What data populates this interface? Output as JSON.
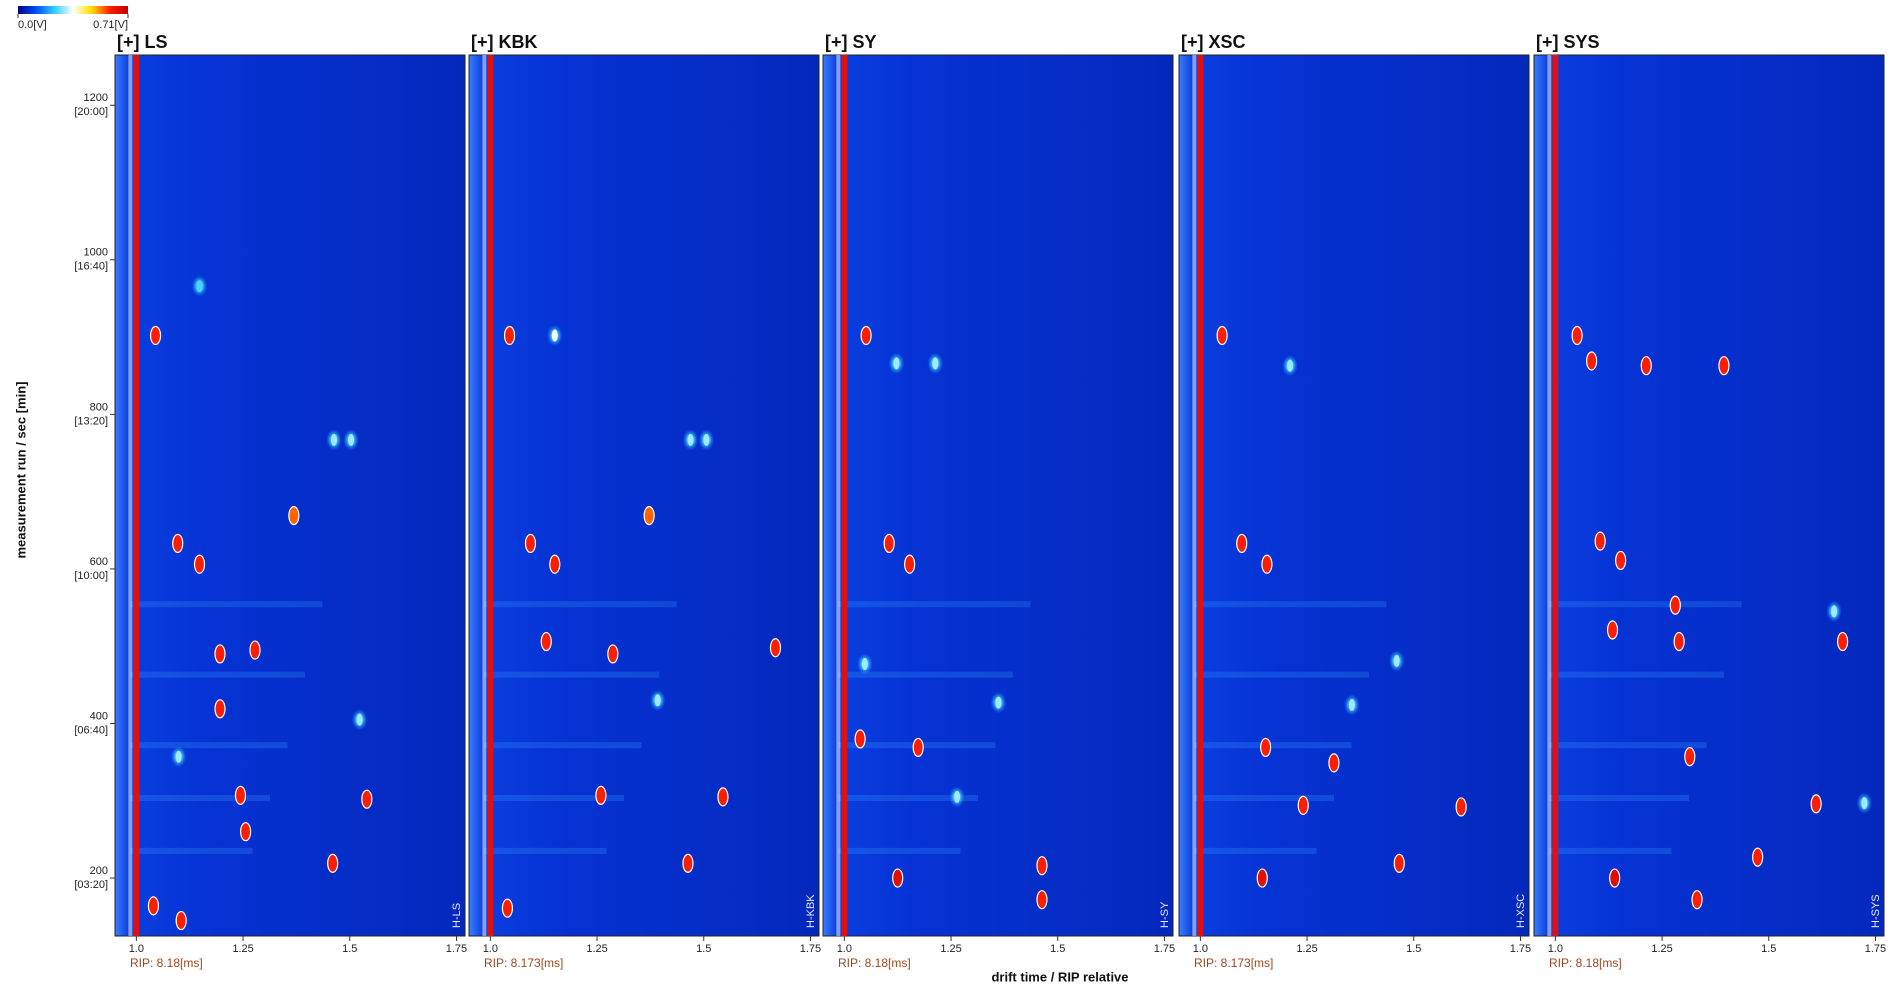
{
  "chart_data": {
    "type": "heatmap",
    "xlabel": "drift time / RIP relative",
    "ylabel": "measurement run / sec [min]",
    "xlim": [
      0.95,
      1.77
    ],
    "xticks": [
      {
        "value": 1.0,
        "label": "1.0"
      },
      1.25,
      1.5,
      1.75
    ],
    "ylim": [
      125,
      1265
    ],
    "yticks": [
      {
        "value": 200,
        "label": "200",
        "time": "[03:20]"
      },
      {
        "value": 400,
        "label": "400",
        "time": "[06:40]"
      },
      {
        "value": 600,
        "label": "600",
        "time": "[10:00]"
      },
      {
        "value": 800,
        "label": "800",
        "time": "[13:20]"
      },
      {
        "value": 1000,
        "label": "1000",
        "time": "[16:40]"
      },
      {
        "value": 1200,
        "label": "1200",
        "time": "[20:00]"
      }
    ],
    "colorbar": {
      "colors": [
        "#00008b",
        "#0050ff",
        "#30d0ff",
        "#ffffff",
        "#ffe000",
        "#ff2000",
        "#c00000"
      ],
      "ticks": [
        {
          "value": 0,
          "label": "0.0[V]"
        },
        {
          "value": 0.71,
          "label": "0.71[V]"
        }
      ]
    },
    "panels": [
      {
        "title": "[+] LS",
        "side_label": "H-LS",
        "rip_label": "RIP: 8.18[ms]",
        "spots": [
          {
            "x": 1.045,
            "y": 902,
            "intensity": 0.6
          },
          {
            "x": 1.097,
            "y": 633,
            "intensity": 0.6
          },
          {
            "x": 1.148,
            "y": 606,
            "intensity": 0.6
          },
          {
            "x": 1.196,
            "y": 490,
            "intensity": 0.6
          },
          {
            "x": 1.196,
            "y": 419,
            "intensity": 0.6
          },
          {
            "x": 1.278,
            "y": 495,
            "intensity": 0.6
          },
          {
            "x": 1.369,
            "y": 669,
            "intensity": 0.55
          },
          {
            "x": 1.463,
            "y": 767,
            "intensity": 0.3
          },
          {
            "x": 1.503,
            "y": 767,
            "intensity": 0.3
          },
          {
            "x": 1.523,
            "y": 405,
            "intensity": 0.3
          },
          {
            "x": 1.244,
            "y": 307,
            "intensity": 0.6
          },
          {
            "x": 1.54,
            "y": 302,
            "intensity": 0.6
          },
          {
            "x": 1.46,
            "y": 219,
            "intensity": 0.6
          },
          {
            "x": 1.256,
            "y": 260,
            "intensity": 0.6
          },
          {
            "x": 1.148,
            "y": 966,
            "intensity": 0.25
          },
          {
            "x": 1.099,
            "y": 357,
            "intensity": 0.3
          },
          {
            "x": 1.04,
            "y": 164,
            "intensity": 0.6
          },
          {
            "x": 1.105,
            "y": 145,
            "intensity": 0.6
          }
        ]
      },
      {
        "title": "[+] KBK",
        "side_label": "H-KBK",
        "rip_label": "RIP: 8.173[ms]",
        "spots": [
          {
            "x": 1.045,
            "y": 902,
            "intensity": 0.6
          },
          {
            "x": 1.151,
            "y": 902,
            "intensity": 0.35
          },
          {
            "x": 1.094,
            "y": 633,
            "intensity": 0.6
          },
          {
            "x": 1.151,
            "y": 606,
            "intensity": 0.6
          },
          {
            "x": 1.131,
            "y": 506,
            "intensity": 0.6
          },
          {
            "x": 1.287,
            "y": 490,
            "intensity": 0.6
          },
          {
            "x": 1.372,
            "y": 669,
            "intensity": 0.55
          },
          {
            "x": 1.469,
            "y": 767,
            "intensity": 0.3
          },
          {
            "x": 1.506,
            "y": 767,
            "intensity": 0.3
          },
          {
            "x": 1.668,
            "y": 498,
            "intensity": 0.6
          },
          {
            "x": 1.259,
            "y": 307,
            "intensity": 0.6
          },
          {
            "x": 1.545,
            "y": 305,
            "intensity": 0.6
          },
          {
            "x": 1.463,
            "y": 219,
            "intensity": 0.6
          },
          {
            "x": 1.392,
            "y": 430,
            "intensity": 0.3
          },
          {
            "x": 1.04,
            "y": 161,
            "intensity": 0.6
          }
        ]
      },
      {
        "title": "[+] SY",
        "side_label": "H-SY",
        "rip_label": "RIP: 8.18[ms]",
        "spots": [
          {
            "x": 1.051,
            "y": 902,
            "intensity": 0.6
          },
          {
            "x": 1.105,
            "y": 633,
            "intensity": 0.6
          },
          {
            "x": 1.153,
            "y": 606,
            "intensity": 0.6
          },
          {
            "x": 1.122,
            "y": 866,
            "intensity": 0.3
          },
          {
            "x": 1.213,
            "y": 866,
            "intensity": 0.3
          },
          {
            "x": 1.173,
            "y": 369,
            "intensity": 0.6
          },
          {
            "x": 1.125,
            "y": 200,
            "intensity": 0.65
          },
          {
            "x": 1.463,
            "y": 216,
            "intensity": 0.6
          },
          {
            "x": 1.463,
            "y": 172,
            "intensity": 0.6
          },
          {
            "x": 1.361,
            "y": 427,
            "intensity": 0.3
          },
          {
            "x": 1.264,
            "y": 305,
            "intensity": 0.3
          },
          {
            "x": 1.037,
            "y": 380,
            "intensity": 0.6
          },
          {
            "x": 1.048,
            "y": 477,
            "intensity": 0.3
          }
        ]
      },
      {
        "title": "[+] XSC",
        "side_label": "H-XSC",
        "rip_label": "RIP: 8.173[ms]",
        "spots": [
          {
            "x": 1.051,
            "y": 902,
            "intensity": 0.6
          },
          {
            "x": 1.097,
            "y": 633,
            "intensity": 0.6
          },
          {
            "x": 1.156,
            "y": 606,
            "intensity": 0.6
          },
          {
            "x": 1.21,
            "y": 863,
            "intensity": 0.3
          },
          {
            "x": 1.153,
            "y": 369,
            "intensity": 0.6
          },
          {
            "x": 1.313,
            "y": 349,
            "intensity": 0.6
          },
          {
            "x": 1.145,
            "y": 200,
            "intensity": 0.65
          },
          {
            "x": 1.466,
            "y": 219,
            "intensity": 0.6
          },
          {
            "x": 1.611,
            "y": 292,
            "intensity": 0.6
          },
          {
            "x": 1.46,
            "y": 481,
            "intensity": 0.3
          },
          {
            "x": 1.355,
            "y": 424,
            "intensity": 0.3
          },
          {
            "x": 1.241,
            "y": 294,
            "intensity": 0.6
          }
        ]
      },
      {
        "title": "[+] SYS",
        "side_label": "H-SYS",
        "rip_label": "RIP: 8.18[ms]",
        "spots": [
          {
            "x": 1.051,
            "y": 902,
            "intensity": 0.6
          },
          {
            "x": 1.085,
            "y": 869,
            "intensity": 0.6
          },
          {
            "x": 1.213,
            "y": 863,
            "intensity": 0.6
          },
          {
            "x": 1.395,
            "y": 863,
            "intensity": 0.6
          },
          {
            "x": 1.105,
            "y": 636,
            "intensity": 0.6
          },
          {
            "x": 1.153,
            "y": 611,
            "intensity": 0.6
          },
          {
            "x": 1.134,
            "y": 521,
            "intensity": 0.6
          },
          {
            "x": 1.281,
            "y": 553,
            "intensity": 0.6
          },
          {
            "x": 1.29,
            "y": 506,
            "intensity": 0.6
          },
          {
            "x": 1.673,
            "y": 506,
            "intensity": 0.6
          },
          {
            "x": 1.315,
            "y": 357,
            "intensity": 0.6
          },
          {
            "x": 1.611,
            "y": 296,
            "intensity": 0.6
          },
          {
            "x": 1.474,
            "y": 227,
            "intensity": 0.6
          },
          {
            "x": 1.139,
            "y": 200,
            "intensity": 0.65
          },
          {
            "x": 1.332,
            "y": 172,
            "intensity": 0.6
          },
          {
            "x": 1.653,
            "y": 545,
            "intensity": 0.3
          },
          {
            "x": 1.724,
            "y": 297,
            "intensity": 0.3
          }
        ]
      }
    ]
  }
}
